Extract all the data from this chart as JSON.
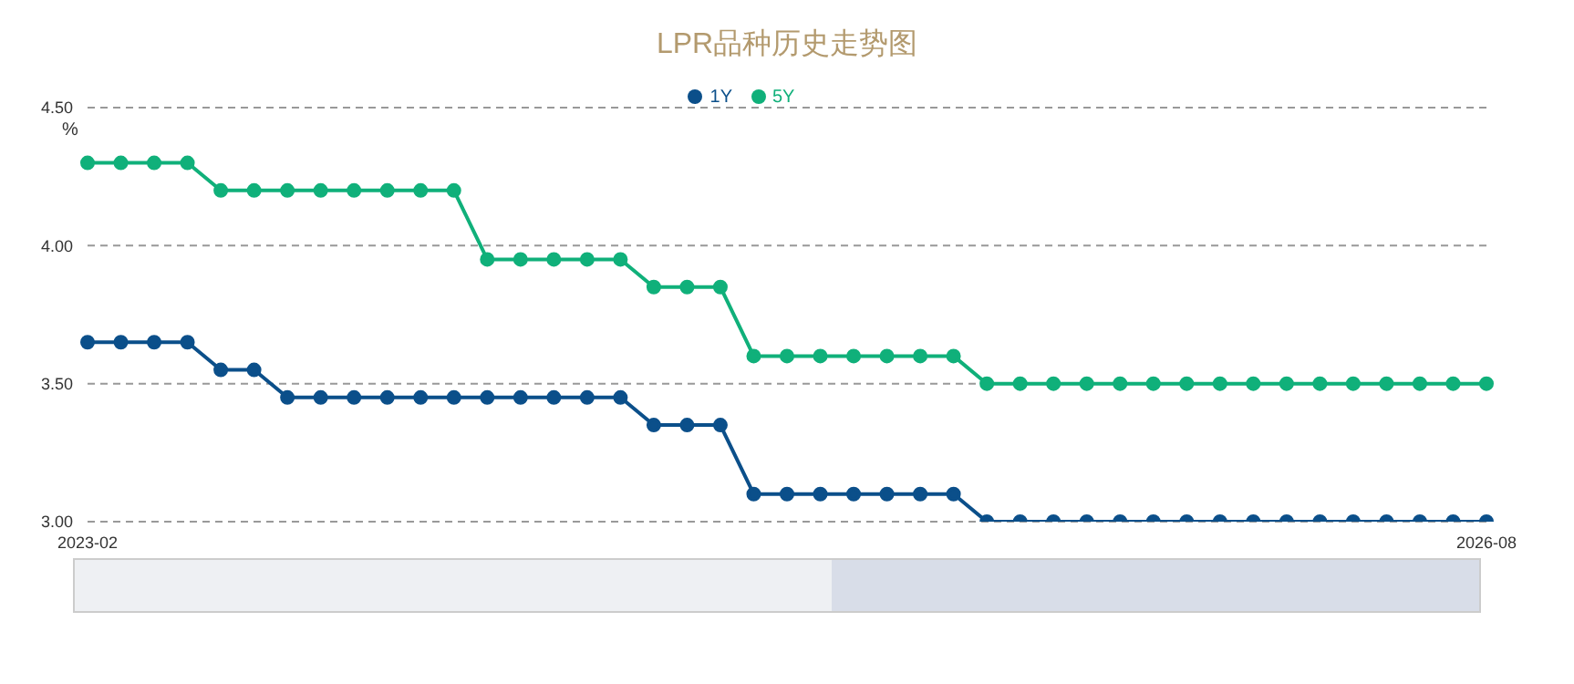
{
  "chart_data": {
    "type": "line",
    "title": "LPR品种历史走势图",
    "ylabel": "%",
    "categories": [
      "2023-02",
      null,
      null,
      null,
      null,
      null,
      null,
      null,
      null,
      null,
      null,
      null,
      null,
      null,
      null,
      null,
      null,
      null,
      null,
      null,
      null,
      null,
      null,
      null,
      null,
      null,
      null,
      null,
      null,
      null,
      null,
      null,
      null,
      null,
      null,
      null,
      null,
      null,
      null,
      null,
      null,
      null,
      "2026-08"
    ],
    "series": [
      {
        "name": "1Y",
        "color": "#0b4f8a",
        "values": [
          3.65,
          3.65,
          3.65,
          3.65,
          3.55,
          3.55,
          3.45,
          3.45,
          3.45,
          3.45,
          3.45,
          3.45,
          3.45,
          3.45,
          3.45,
          3.45,
          3.45,
          3.35,
          3.35,
          3.35,
          3.1,
          3.1,
          3.1,
          3.1,
          3.1,
          3.1,
          3.1,
          3.0,
          3.0,
          3.0,
          3.0,
          3.0,
          3.0,
          3.0,
          3.0,
          3.0,
          3.0,
          3.0,
          3.0,
          3.0,
          3.0,
          3.0,
          3.0
        ]
      },
      {
        "name": "5Y",
        "color": "#10b07a",
        "values": [
          4.3,
          4.3,
          4.3,
          4.3,
          4.2,
          4.2,
          4.2,
          4.2,
          4.2,
          4.2,
          4.2,
          4.2,
          3.95,
          3.95,
          3.95,
          3.95,
          3.95,
          3.85,
          3.85,
          3.85,
          3.6,
          3.6,
          3.6,
          3.6,
          3.6,
          3.6,
          3.6,
          3.5,
          3.5,
          3.5,
          3.5,
          3.5,
          3.5,
          3.5,
          3.5,
          3.5,
          3.5,
          3.5,
          3.5,
          3.5,
          3.5,
          3.5,
          3.5
        ]
      }
    ],
    "ylim": [
      3.0,
      4.5
    ],
    "yticks": [
      {
        "value": 3.0,
        "label": "3.00"
      },
      {
        "value": 3.5,
        "label": "3.50"
      },
      {
        "value": 4.0,
        "label": "4.00"
      },
      {
        "value": 4.5,
        "label": "4.50"
      }
    ],
    "grid": "y",
    "legend": "top",
    "marker": "circle",
    "line_style": "solid"
  }
}
